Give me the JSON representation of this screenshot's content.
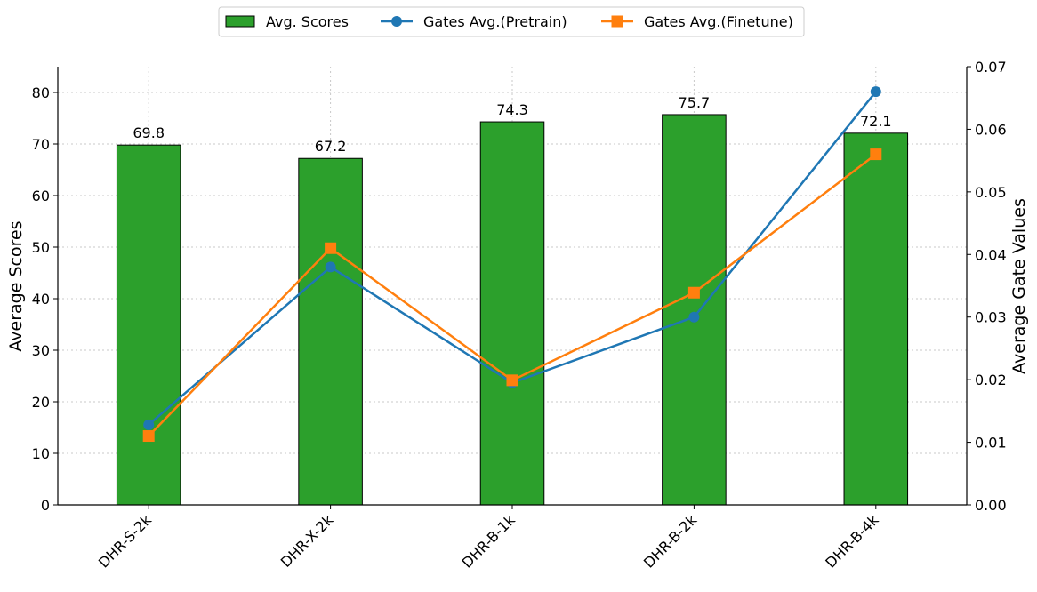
{
  "chart_data": {
    "type": "bar",
    "categories": [
      "DHR-S-2k",
      "DHR-X-2k",
      "DHR-B-1k",
      "DHR-B-2k",
      "DHR-B-4k"
    ],
    "bar_series": {
      "name": "Avg. Scores",
      "values": [
        69.8,
        67.2,
        74.3,
        75.7,
        72.1
      ],
      "color": "#2ca02c",
      "data_labels": [
        "69.8",
        "67.2",
        "74.3",
        "75.7",
        "72.1"
      ]
    },
    "line_series": [
      {
        "name": "Gates Avg.(Pretrain)",
        "values": [
          0.0128,
          0.038,
          0.0195,
          0.03,
          0.066
        ],
        "color": "#1f77b4",
        "marker": "circle"
      },
      {
        "name": "Gates Avg.(Finetune)",
        "values": [
          0.011,
          0.041,
          0.0199,
          0.0339,
          0.056
        ],
        "color": "#ff7f0e",
        "marker": "square"
      }
    ],
    "ylabel": "Average Scores",
    "y2label": "Average Gate Values",
    "ylim": [
      0,
      85
    ],
    "y2lim": [
      0,
      0.07
    ],
    "yticks": [
      "0",
      "10",
      "20",
      "30",
      "40",
      "50",
      "60",
      "70",
      "80"
    ],
    "y2ticks": [
      "0.00",
      "0.01",
      "0.02",
      "0.03",
      "0.04",
      "0.05",
      "0.06",
      "0.07"
    ],
    "grid": true,
    "legend_position": "top-center"
  }
}
